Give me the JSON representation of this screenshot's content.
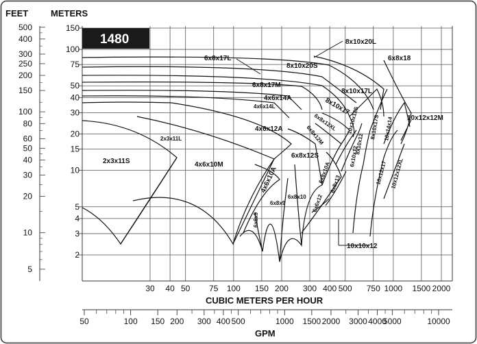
{
  "chart_data": {
    "type": "scatter",
    "title": "",
    "rpm_badge": "1480",
    "header": {
      "feet": "FEET",
      "meters": "METERS"
    },
    "xlabel": "CUBIC METERS PER HOUR",
    "x2label": "GPM",
    "ylabel_left": "FEET",
    "ylabel_right": "METERS",
    "xlim": [
      14,
      2500
    ],
    "ylim": [
      1.4,
      170
    ],
    "x_scale": "log",
    "y_scale": "log",
    "grid": true,
    "meter_ticks": [
      "150",
      "100",
      "75",
      "50",
      "40",
      "30",
      "20",
      "15",
      "10",
      "5",
      "4",
      "3",
      "2"
    ],
    "feet_ticks": [
      "500",
      "400",
      "300",
      "250",
      "200",
      "150",
      "100",
      "80",
      "60",
      "50",
      "40",
      "30",
      "20",
      "10",
      "5"
    ],
    "m3h_ticks": [
      "30",
      "40",
      "50",
      "75",
      "100",
      "150",
      "200",
      "300",
      "400",
      "500",
      "750",
      "1000",
      "1500",
      "2000"
    ],
    "gpm_ticks": [
      "50",
      "100",
      "150",
      "200",
      "300",
      "400",
      "500",
      "1000",
      "1500",
      "2000",
      "3000",
      "4000",
      "5000",
      "10000"
    ],
    "pump_labels": [
      "2x3x11S",
      "2x3x11L",
      "4x6x10M",
      "4x6x12A",
      "4x6x14L",
      "4x6x14A",
      "6x8x17M",
      "6x8x17L",
      "8x10x20S",
      "8x10x20L",
      "6x8x18",
      "8x10x17L",
      "8x10x17",
      "6x8x12XL",
      "6x8x12M",
      "6x8x12S",
      "6x8x10",
      "6x8x9",
      "6x6x9",
      "4x6x10A",
      "6x8x10A",
      "6x8x13",
      "6x6x12",
      "6x10x12",
      "8x10x12",
      "10x10x12S",
      "8x10x17S",
      "10x14x14",
      "10x12x12M",
      "10x12x17",
      "10x12x12XL",
      "10x10x12"
    ],
    "series": []
  }
}
